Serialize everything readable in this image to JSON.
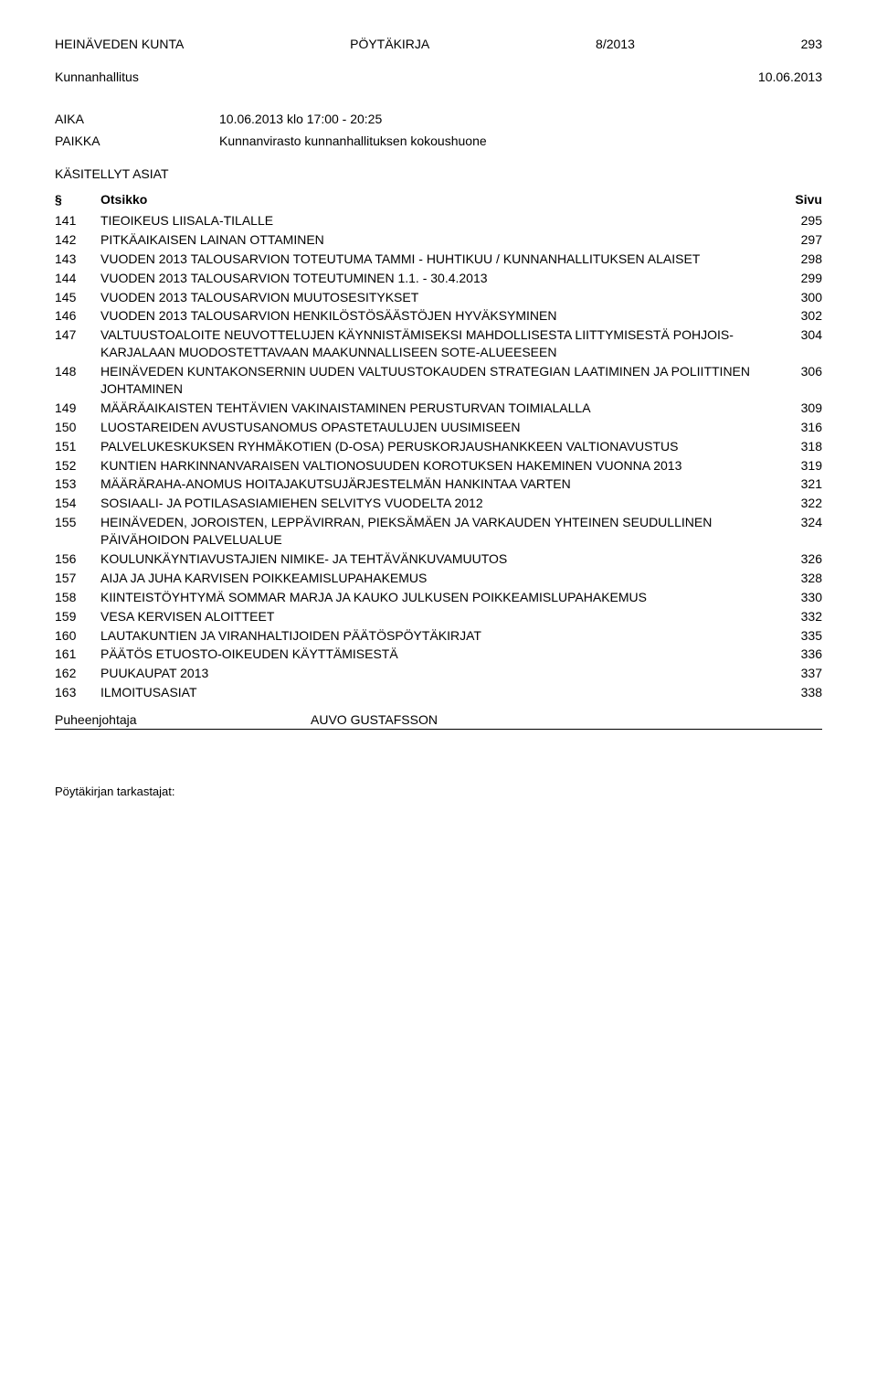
{
  "header": {
    "org": "HEINÄVEDEN KUNTA",
    "doc_type": "PÖYTÄKIRJA",
    "doc_number": "8/2013",
    "page_number": "293"
  },
  "subheader": {
    "body": "Kunnanhallitus",
    "date": "10.06.2013"
  },
  "aika": {
    "label": "AIKA",
    "value": "10.06.2013 klo 17:00 - 20:25"
  },
  "paikka": {
    "label": "PAIKKA",
    "value": "Kunnanvirasto kunnanhallituksen kokoushuone"
  },
  "section_title": "KÄSITELLYT ASIAT",
  "toc_header": {
    "num": "§",
    "title": "Otsikko",
    "page": "Sivu"
  },
  "toc": [
    {
      "num": "141",
      "title": "TIEOIKEUS LIISALA-TILALLE",
      "page": "295"
    },
    {
      "num": "142",
      "title": "PITKÄAIKAISEN LAINAN OTTAMINEN",
      "page": "297"
    },
    {
      "num": "143",
      "title": "VUODEN 2013 TALOUSARVION TOTEUTUMA TAMMI - HUHTIKUU / KUNNANHALLITUKSEN ALAISET",
      "page": "298"
    },
    {
      "num": "144",
      "title": "VUODEN 2013 TALOUSARVION TOTEUTUMINEN 1.1. - 30.4.2013",
      "page": "299"
    },
    {
      "num": "145",
      "title": "VUODEN 2013 TALOUSARVION MUUTOSESITYKSET",
      "page": "300"
    },
    {
      "num": "146",
      "title": "VUODEN 2013 TALOUSARVION HENKILÖSTÖSÄÄSTÖJEN HYVÄKSYMINEN",
      "page": "302"
    },
    {
      "num": "147",
      "title": "VALTUUSTOALOITE NEUVOTTELUJEN KÄYNNISTÄMISEKSI MAHDOLLISESTA LIITTYMISESTÄ POHJOIS-KARJALAAN MUODOSTETTAVAAN MAAKUNNALLISEEN SOTE-ALUEESEEN",
      "page": "304"
    },
    {
      "num": "148",
      "title": "HEINÄVEDEN KUNTAKONSERNIN UUDEN VALTUUSTOKAUDEN STRATEGIAN LAATIMINEN JA POLIITTINEN JOHTAMINEN",
      "page": "306"
    },
    {
      "num": "149",
      "title": "MÄÄRÄAIKAISTEN TEHTÄVIEN VAKINAISTAMINEN PERUSTURVAN TOIMIALALLA",
      "page": "309"
    },
    {
      "num": "150",
      "title": "LUOSTAREIDEN AVUSTUSANOMUS OPASTETAULUJEN UUSIMISEEN",
      "page": "316"
    },
    {
      "num": "151",
      "title": "PALVELUKESKUKSEN RYHMÄKOTIEN (D-OSA) PERUSKORJAUSHANKKEEN VALTIONAVUSTUS",
      "page": "318"
    },
    {
      "num": "152",
      "title": "KUNTIEN HARKINNANVARAISEN VALTIONOSUUDEN KOROTUKSEN HAKEMINEN VUONNA 2013",
      "page": "319"
    },
    {
      "num": "153",
      "title": "MÄÄRÄRAHA-ANOMUS HOITAJAKUTSUJÄRJESTELMÄN HANKINTAA VARTEN",
      "page": "321"
    },
    {
      "num": "154",
      "title": "SOSIAALI- JA POTILASASIAMIEHEN SELVITYS VUODELTA 2012",
      "page": "322"
    },
    {
      "num": "155",
      "title": "HEINÄVEDEN, JOROISTEN, LEPPÄVIRRAN, PIEKSÄMÄEN JA VARKAUDEN YHTEINEN SEUDULLINEN PÄIVÄHOIDON PALVELUALUE",
      "page": "324"
    },
    {
      "num": "156",
      "title": "KOULUNKÄYNTIAVUSTAJIEN NIMIKE- JA TEHTÄVÄNKUVAMUUTOS",
      "page": "326"
    },
    {
      "num": "157",
      "title": "AIJA JA JUHA KARVISEN POIKKEAMISLUPAHAKEMUS",
      "page": "328"
    },
    {
      "num": "158",
      "title": "KIINTEISTÖYHTYMÄ SOMMAR MARJA JA KAUKO JULKUSEN POIKKEAMISLUPAHAKEMUS",
      "page": "330"
    },
    {
      "num": "159",
      "title": "VESA KERVISEN ALOITTEET",
      "page": "332"
    },
    {
      "num": "160",
      "title": "LAUTAKUNTIEN JA VIRANHALTIJOIDEN PÄÄTÖSPÖYTÄKIRJAT",
      "page": "335"
    },
    {
      "num": "161",
      "title": "PÄÄTÖS ETUOSTO-OIKEUDEN KÄYTTÄMISESTÄ",
      "page": "336"
    },
    {
      "num": "162",
      "title": "PUUKAUPAT 2013",
      "page": "337"
    },
    {
      "num": "163",
      "title": "ILMOITUSASIAT",
      "page": "338"
    }
  ],
  "footer": {
    "label": "Puheenjohtaja",
    "name": "AUVO GUSTAFSSON"
  },
  "bottom_note": "Pöytäkirjan tarkastajat:"
}
